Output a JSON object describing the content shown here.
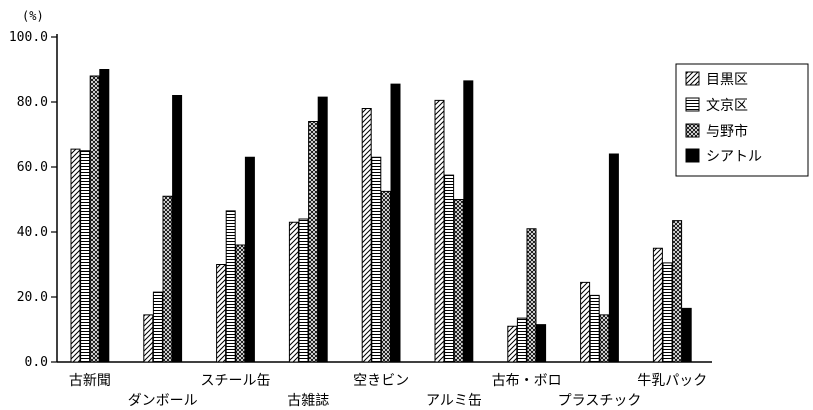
{
  "chart_data": {
    "type": "bar",
    "unit_label": "(%)",
    "ylim": [
      0,
      100
    ],
    "y_ticks": [
      "0.0",
      "20.0",
      "40.0",
      "60.0",
      "80.0",
      "100.0"
    ],
    "categories": [
      "古新聞",
      "ダンボール",
      "スチール缶",
      "古雑誌",
      "空きビン",
      "アルミ缶",
      "古布・ボロ",
      "プラスチック",
      "牛乳パック"
    ],
    "series": [
      {
        "name": "目黒区",
        "pattern": "diagonal-hatch",
        "values": [
          65.5,
          14.5,
          30.0,
          43.0,
          78.0,
          80.5,
          11.0,
          24.5,
          35.0
        ]
      },
      {
        "name": "文京区",
        "pattern": "horizontal-lines",
        "values": [
          65.0,
          21.5,
          46.5,
          44.0,
          63.0,
          57.5,
          13.5,
          20.5,
          30.5
        ]
      },
      {
        "name": "与野市",
        "pattern": "crosshatch",
        "values": [
          88.0,
          51.0,
          36.0,
          74.0,
          52.5,
          50.0,
          41.0,
          14.5,
          43.5
        ]
      },
      {
        "name": "シアトル",
        "pattern": "solid-black",
        "values": [
          90.0,
          82.0,
          63.0,
          81.5,
          85.5,
          86.5,
          11.5,
          64.0,
          16.5
        ]
      }
    ],
    "legend_position": "right",
    "grid": false
  }
}
